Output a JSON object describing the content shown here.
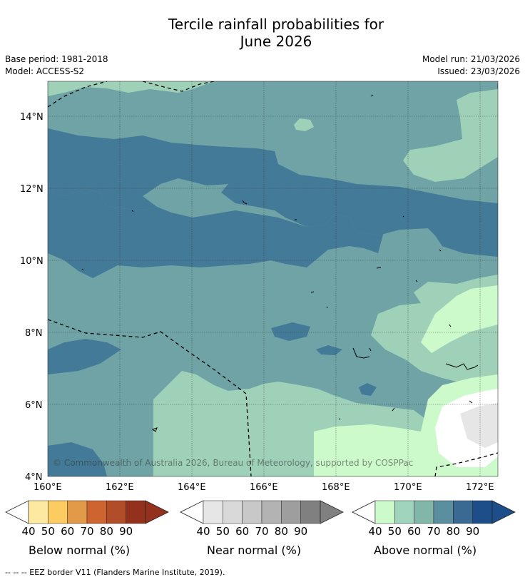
{
  "title_line1": "Tercile rainfall probabilities for",
  "title_line2": "June 2026",
  "meta": {
    "base_period": "Base period: 1981-2018",
    "model": "Model: ACCESS-S2",
    "model_run": "Model run: 21/03/2026",
    "issued": "Issued: 23/03/2026"
  },
  "map": {
    "lat_labels": [
      "14°N",
      "12°N",
      "10°N",
      "8°N",
      "6°N",
      "4°N"
    ],
    "lon_labels": [
      "160°E",
      "162°E",
      "164°E",
      "166°E",
      "168°E",
      "170°E",
      "172°E"
    ],
    "copyright": "© Commonwealth of Australia 2026, Bureau of Meteorology, supported by COSPPac",
    "colors": {
      "above_50": "#9fd1b9",
      "above_60": "#6fa3a6",
      "above_70": "#437a97",
      "above_40": "#ccfacb",
      "near_normal": "#e6e6e6",
      "white": "#ffffff"
    }
  },
  "colorbars": [
    {
      "label": "Below normal (%)",
      "ticks": [
        "40",
        "50",
        "60",
        "70",
        "80",
        "90"
      ],
      "colors": [
        "#fdeaa0",
        "#fccb62",
        "#e39a48",
        "#ce6531",
        "#b24d2a",
        "#94311c"
      ]
    },
    {
      "label": "Near normal (%)",
      "ticks": [
        "40",
        "50",
        "60",
        "70",
        "80",
        "90"
      ],
      "colors": [
        "#e6e6e6",
        "#d9d9d9",
        "#c8c8c8",
        "#b3b3b3",
        "#9e9e9e",
        "#808080"
      ]
    },
    {
      "label": "Above normal (%)",
      "ticks": [
        "40",
        "50",
        "60",
        "70",
        "80",
        "90"
      ],
      "colors": [
        "#ccfacb",
        "#a0d4bc",
        "#82b6a8",
        "#5b8fa0",
        "#3a6a92",
        "#1d4e89"
      ]
    }
  ],
  "footnote": "--  --  -- EEZ border V11 (Flanders Marine Institute, 2019)."
}
